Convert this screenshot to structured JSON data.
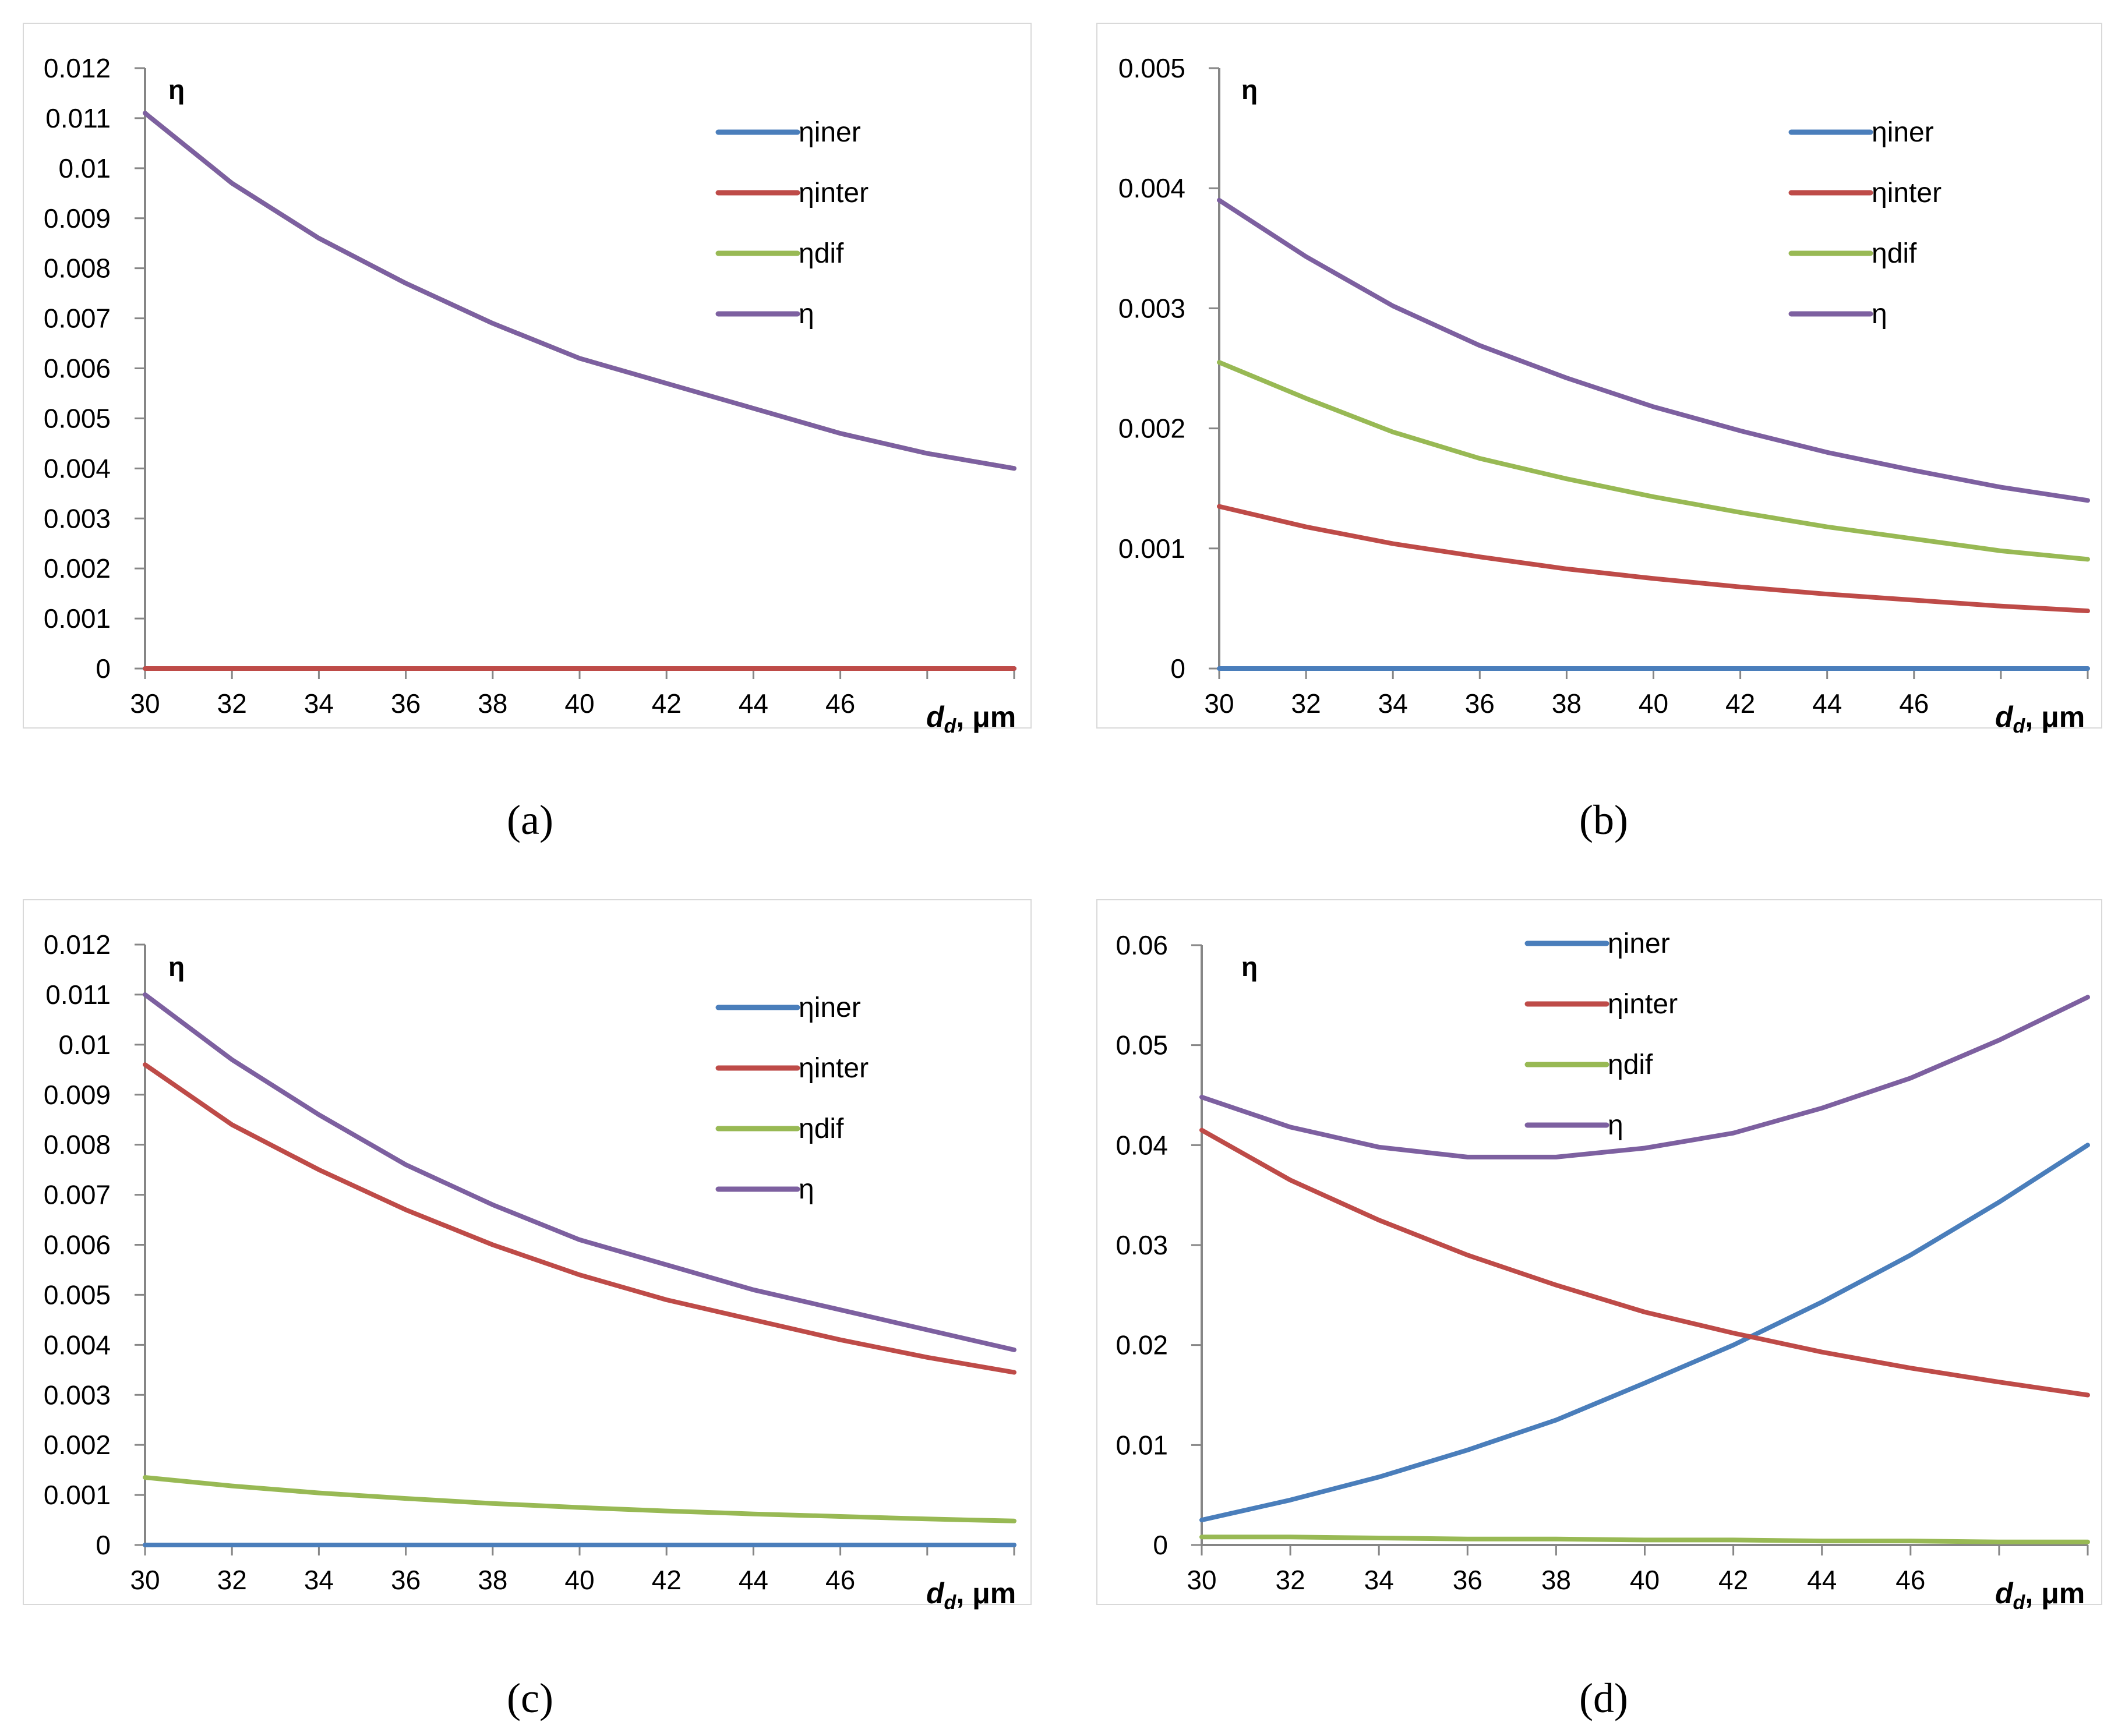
{
  "series_colors": {
    "ηiner": "#4a7ebb",
    "ηinter": "#be4b48",
    "ηdif": "#98b954",
    "η": "#7d60a0"
  },
  "chart_data": [
    {
      "type": "line",
      "panel_label": "(a)",
      "ylabel": "η",
      "xlabel_main": "d",
      "xlabel_sub": "d",
      "xlabel_unit": ", μm",
      "xlim": [
        30,
        50
      ],
      "ylim": [
        0,
        0.012
      ],
      "xticks": [
        30,
        32,
        34,
        36,
        38,
        40,
        42,
        44,
        46
      ],
      "xtick_labels": [
        "30",
        "32",
        "34",
        "36",
        "38",
        "40",
        "42",
        "44",
        "46"
      ],
      "yticks": [
        0,
        0.001,
        0.002,
        0.003,
        0.004,
        0.005,
        0.006,
        0.007,
        0.008,
        0.009,
        0.01,
        0.011,
        0.012
      ],
      "ytick_labels": [
        "0",
        "0.001",
        "0.002",
        "0.003",
        "0.004",
        "0.005",
        "0.006",
        "0.007",
        "0.008",
        "0.009",
        "0.01",
        "0.011",
        "0.012"
      ],
      "grid": false,
      "legend": "upper-right",
      "x": [
        30,
        32,
        34,
        36,
        38,
        40,
        42,
        44,
        46,
        48,
        50
      ],
      "series": [
        {
          "name": "ηiner",
          "values": [
            0,
            0,
            0,
            0,
            0,
            0,
            0,
            0,
            0,
            0,
            0
          ]
        },
        {
          "name": "ηinter",
          "values": [
            0,
            0,
            0,
            0,
            0,
            0,
            0,
            0,
            0,
            0,
            0
          ]
        },
        {
          "name": "ηdif",
          "values": [
            0.0111,
            0.0097,
            0.0086,
            0.0077,
            0.0069,
            0.0062,
            0.0057,
            0.0052,
            0.0047,
            0.0043,
            0.004
          ]
        },
        {
          "name": "η",
          "values": [
            0.0111,
            0.0097,
            0.0086,
            0.0077,
            0.0069,
            0.0062,
            0.0057,
            0.0052,
            0.0047,
            0.0043,
            0.004
          ]
        }
      ]
    },
    {
      "type": "line",
      "panel_label": "(b)",
      "ylabel": "η",
      "xlabel_main": "d",
      "xlabel_sub": "d",
      "xlabel_unit": ", μm",
      "xlim": [
        30,
        50
      ],
      "ylim": [
        0,
        0.005
      ],
      "xticks": [
        30,
        32,
        34,
        36,
        38,
        40,
        42,
        44,
        46
      ],
      "xtick_labels": [
        "30",
        "32",
        "34",
        "36",
        "38",
        "40",
        "42",
        "44",
        "46"
      ],
      "yticks": [
        0,
        0.001,
        0.002,
        0.003,
        0.004,
        0.005
      ],
      "ytick_labels": [
        "0",
        "0.001",
        "0.002",
        "0.003",
        "0.004",
        "0.005"
      ],
      "grid": false,
      "legend": "upper-right",
      "x": [
        30,
        32,
        34,
        36,
        38,
        40,
        42,
        44,
        46,
        48,
        50
      ],
      "series": [
        {
          "name": "ηiner",
          "values": [
            0,
            0,
            0,
            0,
            0,
            0,
            0,
            0,
            0,
            0,
            0
          ]
        },
        {
          "name": "ηinter",
          "values": [
            0.00135,
            0.00118,
            0.00104,
            0.00093,
            0.00083,
            0.00075,
            0.00068,
            0.00062,
            0.00057,
            0.00052,
            0.00048
          ]
        },
        {
          "name": "ηdif",
          "values": [
            0.00255,
            0.00225,
            0.00197,
            0.00175,
            0.00158,
            0.00143,
            0.0013,
            0.00118,
            0.00108,
            0.00098,
            0.00091
          ]
        },
        {
          "name": "η",
          "values": [
            0.0039,
            0.00343,
            0.00302,
            0.00269,
            0.00242,
            0.00218,
            0.00198,
            0.0018,
            0.00165,
            0.00151,
            0.0014
          ]
        }
      ]
    },
    {
      "type": "line",
      "panel_label": "(c)",
      "ylabel": "η",
      "xlabel_main": "d",
      "xlabel_sub": "d",
      "xlabel_unit": ", μm",
      "xlim": [
        30,
        50
      ],
      "ylim": [
        0,
        0.012
      ],
      "xticks": [
        30,
        32,
        34,
        36,
        38,
        40,
        42,
        44,
        46
      ],
      "xtick_labels": [
        "30",
        "32",
        "34",
        "36",
        "38",
        "40",
        "42",
        "44",
        "46"
      ],
      "yticks": [
        0,
        0.001,
        0.002,
        0.003,
        0.004,
        0.005,
        0.006,
        0.007,
        0.008,
        0.009,
        0.01,
        0.011,
        0.012
      ],
      "ytick_labels": [
        "0",
        "0.001",
        "0.002",
        "0.003",
        "0.004",
        "0.005",
        "0.006",
        "0.007",
        "0.008",
        "0.009",
        "0.01",
        "0.011",
        "0.012"
      ],
      "grid": false,
      "legend": "upper-right",
      "x": [
        30,
        32,
        34,
        36,
        38,
        40,
        42,
        44,
        46,
        48,
        50
      ],
      "series": [
        {
          "name": "ηiner",
          "values": [
            0,
            0,
            0,
            0,
            0,
            0,
            0,
            0,
            0,
            0,
            0
          ]
        },
        {
          "name": "ηinter",
          "values": [
            0.0096,
            0.0084,
            0.0075,
            0.0067,
            0.006,
            0.0054,
            0.0049,
            0.0045,
            0.0041,
            0.00375,
            0.00345
          ]
        },
        {
          "name": "ηdif",
          "values": [
            0.00135,
            0.00118,
            0.00104,
            0.00093,
            0.00083,
            0.00075,
            0.00068,
            0.00062,
            0.00057,
            0.00052,
            0.00048
          ]
        },
        {
          "name": "η",
          "values": [
            0.011,
            0.0097,
            0.0086,
            0.0076,
            0.0068,
            0.0061,
            0.0056,
            0.0051,
            0.0047,
            0.0043,
            0.0039
          ]
        }
      ]
    },
    {
      "type": "line",
      "panel_label": "(d)",
      "ylabel": "η",
      "xlabel_main": "d",
      "xlabel_sub": "d",
      "xlabel_unit": ", μm",
      "xlim": [
        30,
        50
      ],
      "ylim": [
        0,
        0.06
      ],
      "xticks": [
        30,
        32,
        34,
        36,
        38,
        40,
        42,
        44,
        46
      ],
      "xtick_labels": [
        "30",
        "32",
        "34",
        "36",
        "38",
        "40",
        "42",
        "44",
        "46"
      ],
      "yticks": [
        0,
        0.01,
        0.02,
        0.03,
        0.04,
        0.05,
        0.06
      ],
      "ytick_labels": [
        "0",
        "0.01",
        "0.02",
        "0.03",
        "0.04",
        "0.05",
        "0.06"
      ],
      "grid": false,
      "legend": "top-center",
      "x": [
        30,
        32,
        34,
        36,
        38,
        40,
        42,
        44,
        46,
        48,
        50
      ],
      "series": [
        {
          "name": "ηiner",
          "values": [
            0.0025,
            0.0045,
            0.0068,
            0.0095,
            0.0125,
            0.0162,
            0.02,
            0.0243,
            0.029,
            0.0343,
            0.04
          ]
        },
        {
          "name": "ηinter",
          "values": [
            0.0415,
            0.0365,
            0.0325,
            0.029,
            0.026,
            0.0233,
            0.0212,
            0.0193,
            0.0177,
            0.0163,
            0.015
          ]
        },
        {
          "name": "ηdif",
          "values": [
            0.0008,
            0.0008,
            0.0007,
            0.0006,
            0.0006,
            0.0005,
            0.0005,
            0.0004,
            0.0004,
            0.0003,
            0.0003
          ]
        },
        {
          "name": "η",
          "values": [
            0.0448,
            0.0418,
            0.0398,
            0.0388,
            0.0388,
            0.0397,
            0.0412,
            0.0437,
            0.0467,
            0.0505,
            0.0548
          ]
        }
      ]
    }
  ]
}
